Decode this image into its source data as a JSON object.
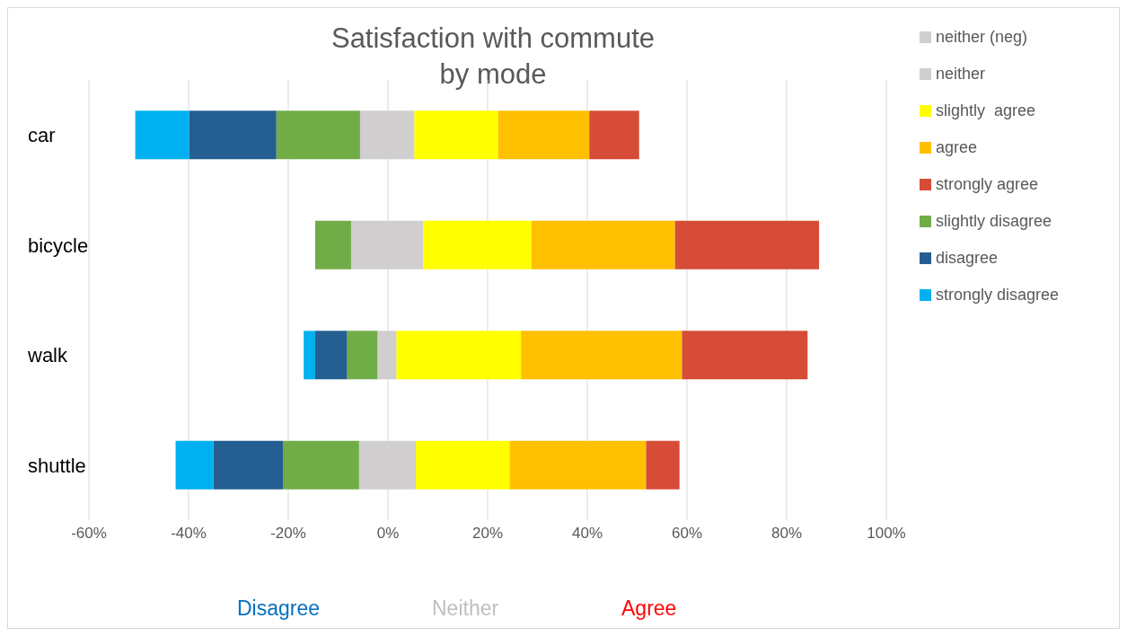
{
  "chart_data": {
    "type": "bar",
    "orientation": "horizontal",
    "stacked": true,
    "title": "Satisfaction with commute by mode",
    "categories": [
      "car",
      "bicycle",
      "walk",
      "shuttle"
    ],
    "series": [
      {
        "name": "neither (neg)",
        "color": "#d0cece",
        "values": [
          -5.6,
          -7.4,
          -2.1,
          -5.8
        ]
      },
      {
        "name": "neither",
        "color": "#d0cece",
        "values": [
          5.3,
          7.1,
          1.7,
          5.6
        ]
      },
      {
        "name": "slightly  agree",
        "color": "#ffff00",
        "values": [
          16.8,
          21.7,
          25,
          18.8
        ]
      },
      {
        "name": "agree",
        "color": "#ffc000",
        "values": [
          18.3,
          28.8,
          32.3,
          27.4
        ]
      },
      {
        "name": "strongly agree",
        "color": "#d64c37",
        "values": [
          10,
          28.9,
          25.2,
          6.7
        ]
      },
      {
        "name": "slightly disagree",
        "color": "#70ad47",
        "values": [
          -16.8,
          -7.2,
          -6.1,
          -15.2
        ]
      },
      {
        "name": "disagree",
        "color": "#255e91",
        "values": [
          -17.5,
          null,
          -6.4,
          -14
        ]
      },
      {
        "name": "strongly disagree",
        "color": "#00b0f0",
        "values": [
          -10.8,
          null,
          -2.3,
          -7.6
        ]
      }
    ],
    "xlim": [
      -60,
      100
    ],
    "xticks": [
      {
        "value": -60,
        "label": "-60%"
      },
      {
        "value": -40,
        "label": "-40%"
      },
      {
        "value": -20,
        "label": "-20%"
      },
      {
        "value": 0,
        "label": "0%"
      },
      {
        "value": 20,
        "label": "20%"
      },
      {
        "value": 40,
        "label": "40%"
      },
      {
        "value": 60,
        "label": "60%"
      },
      {
        "value": 80,
        "label": "80%"
      },
      {
        "value": 100,
        "label": "100%"
      }
    ],
    "grid": "x",
    "legend": "right",
    "annotations": [
      "Disagree",
      "Neither",
      "Agree"
    ]
  }
}
